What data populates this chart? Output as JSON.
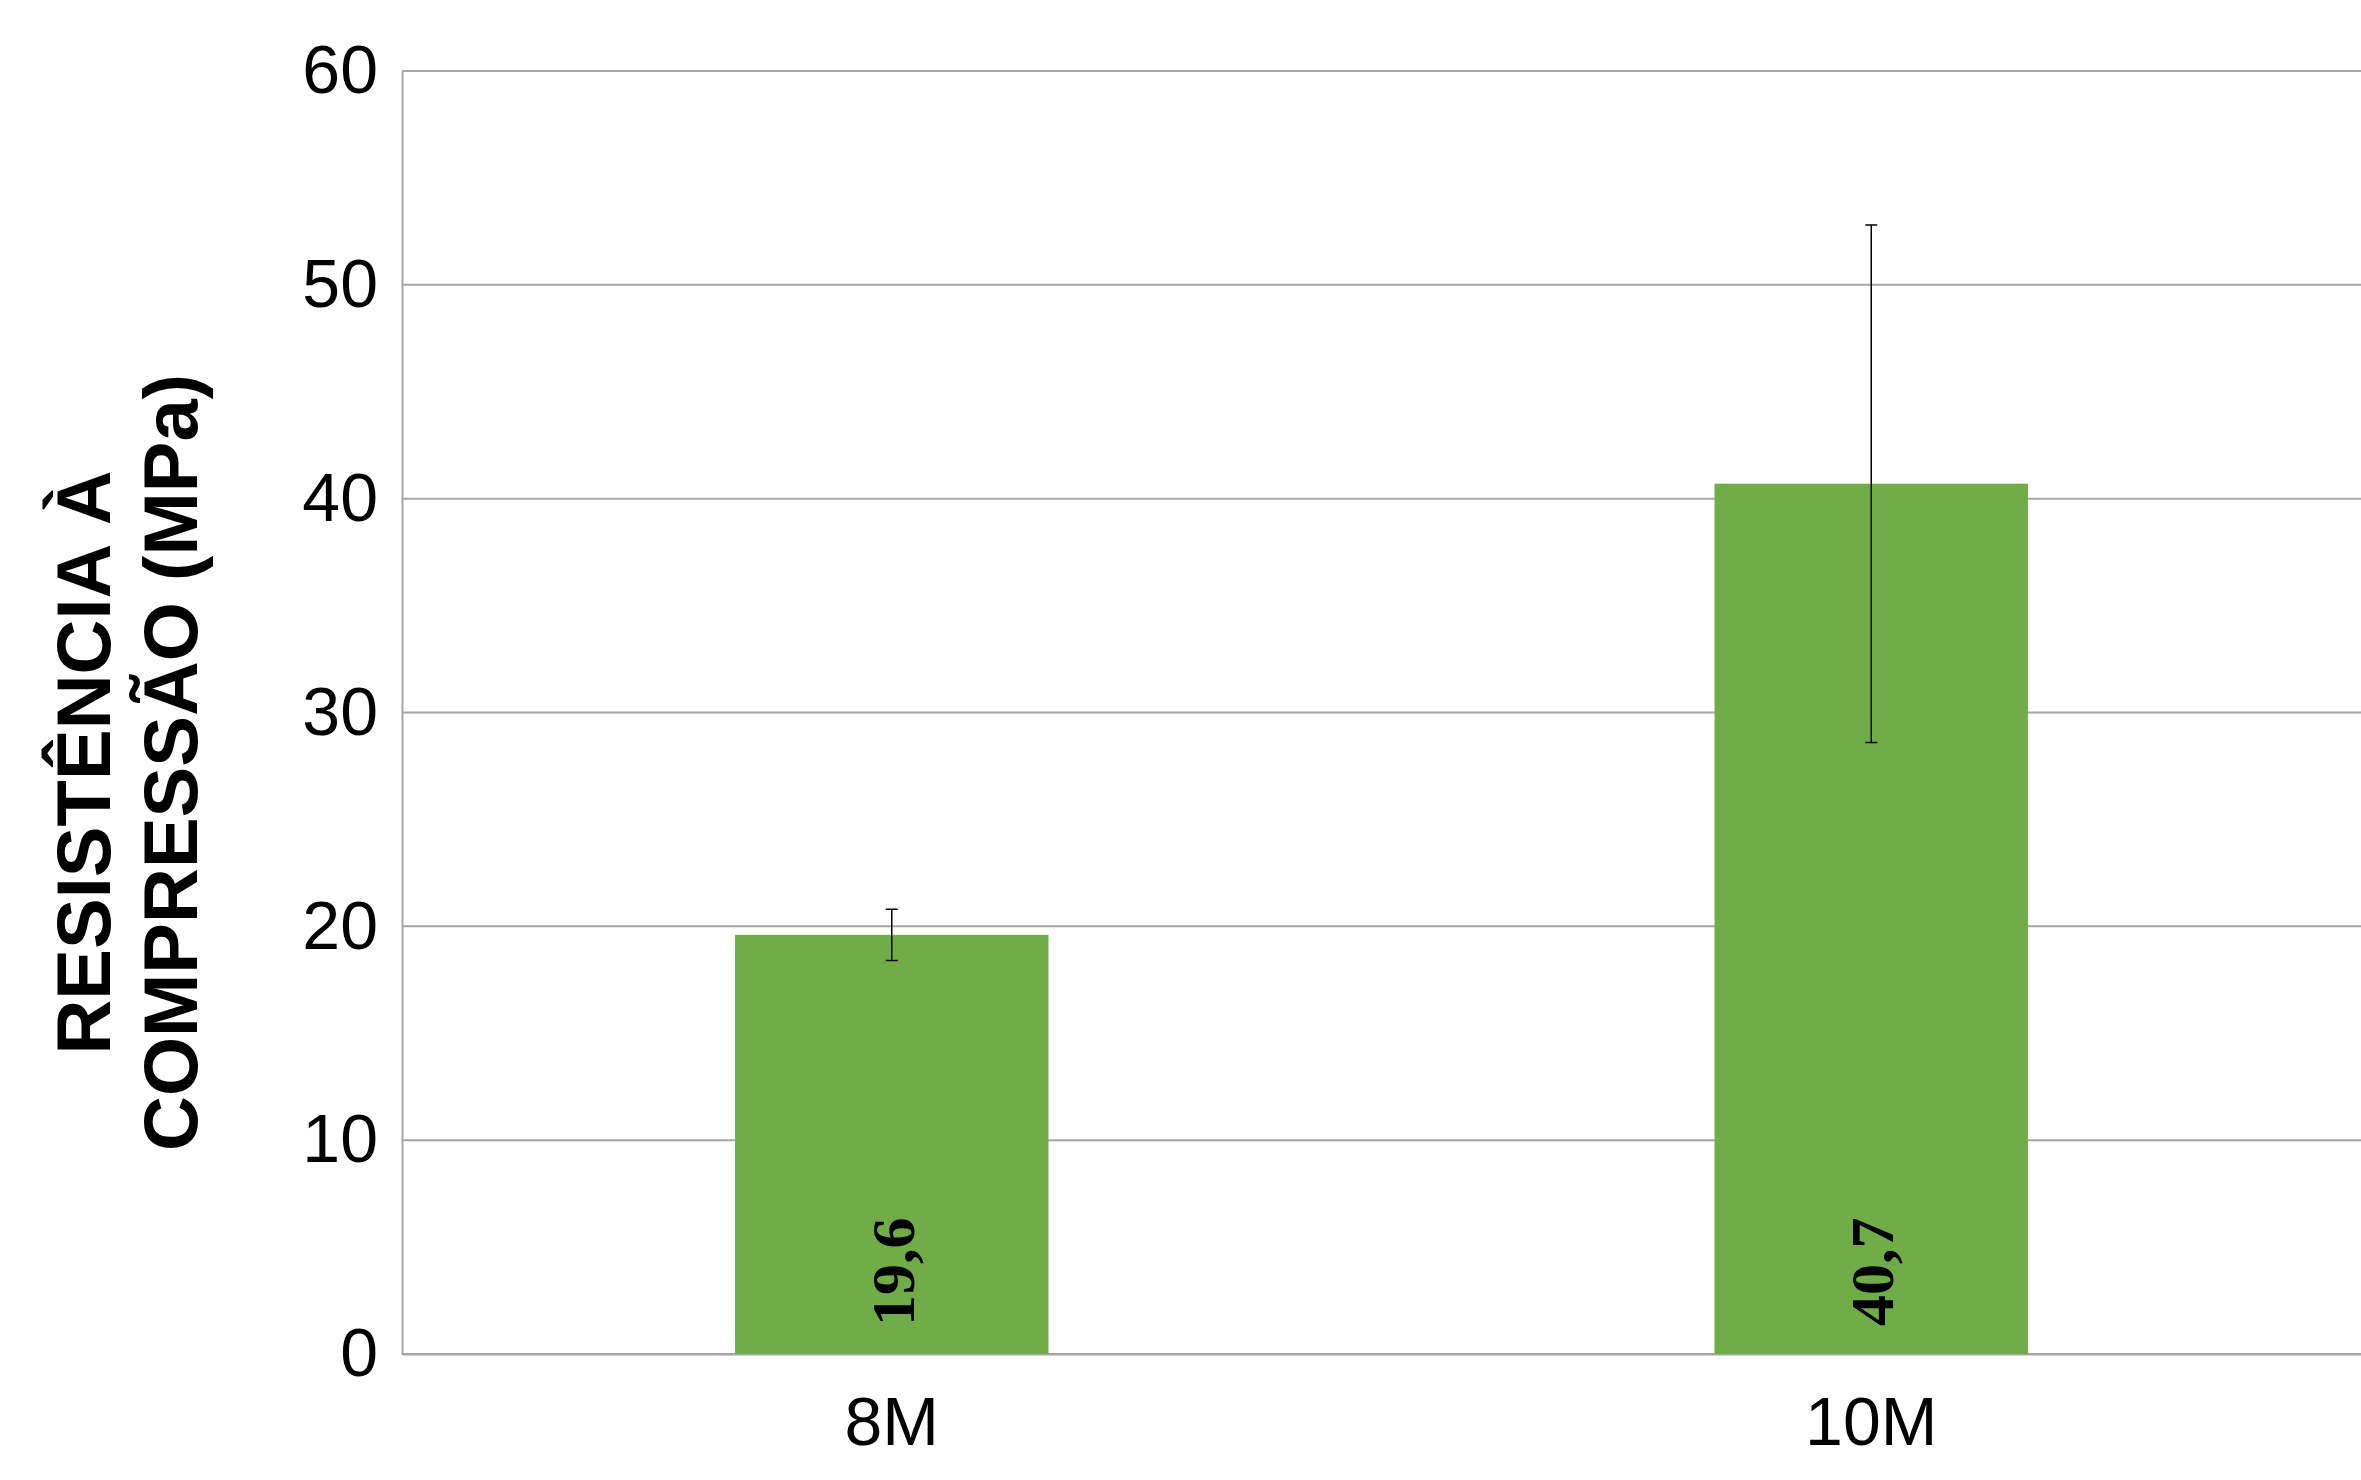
{
  "chart_data": {
    "type": "bar",
    "ylabel": "RESISTÊNCIA À COMPRESSÃO (MPa)",
    "categories": [
      "8M",
      "10M"
    ],
    "values": [
      19.6,
      40.7
    ],
    "value_labels": [
      "19,6",
      "40,7"
    ],
    "errors": [
      [
        18.4,
        20.8
      ],
      [
        28.6,
        52.8
      ]
    ],
    "color": "#70ad47",
    "ylim": [
      0,
      60
    ],
    "yticks": [
      0,
      10,
      20,
      30,
      40,
      50,
      60
    ],
    "grid": "y"
  }
}
